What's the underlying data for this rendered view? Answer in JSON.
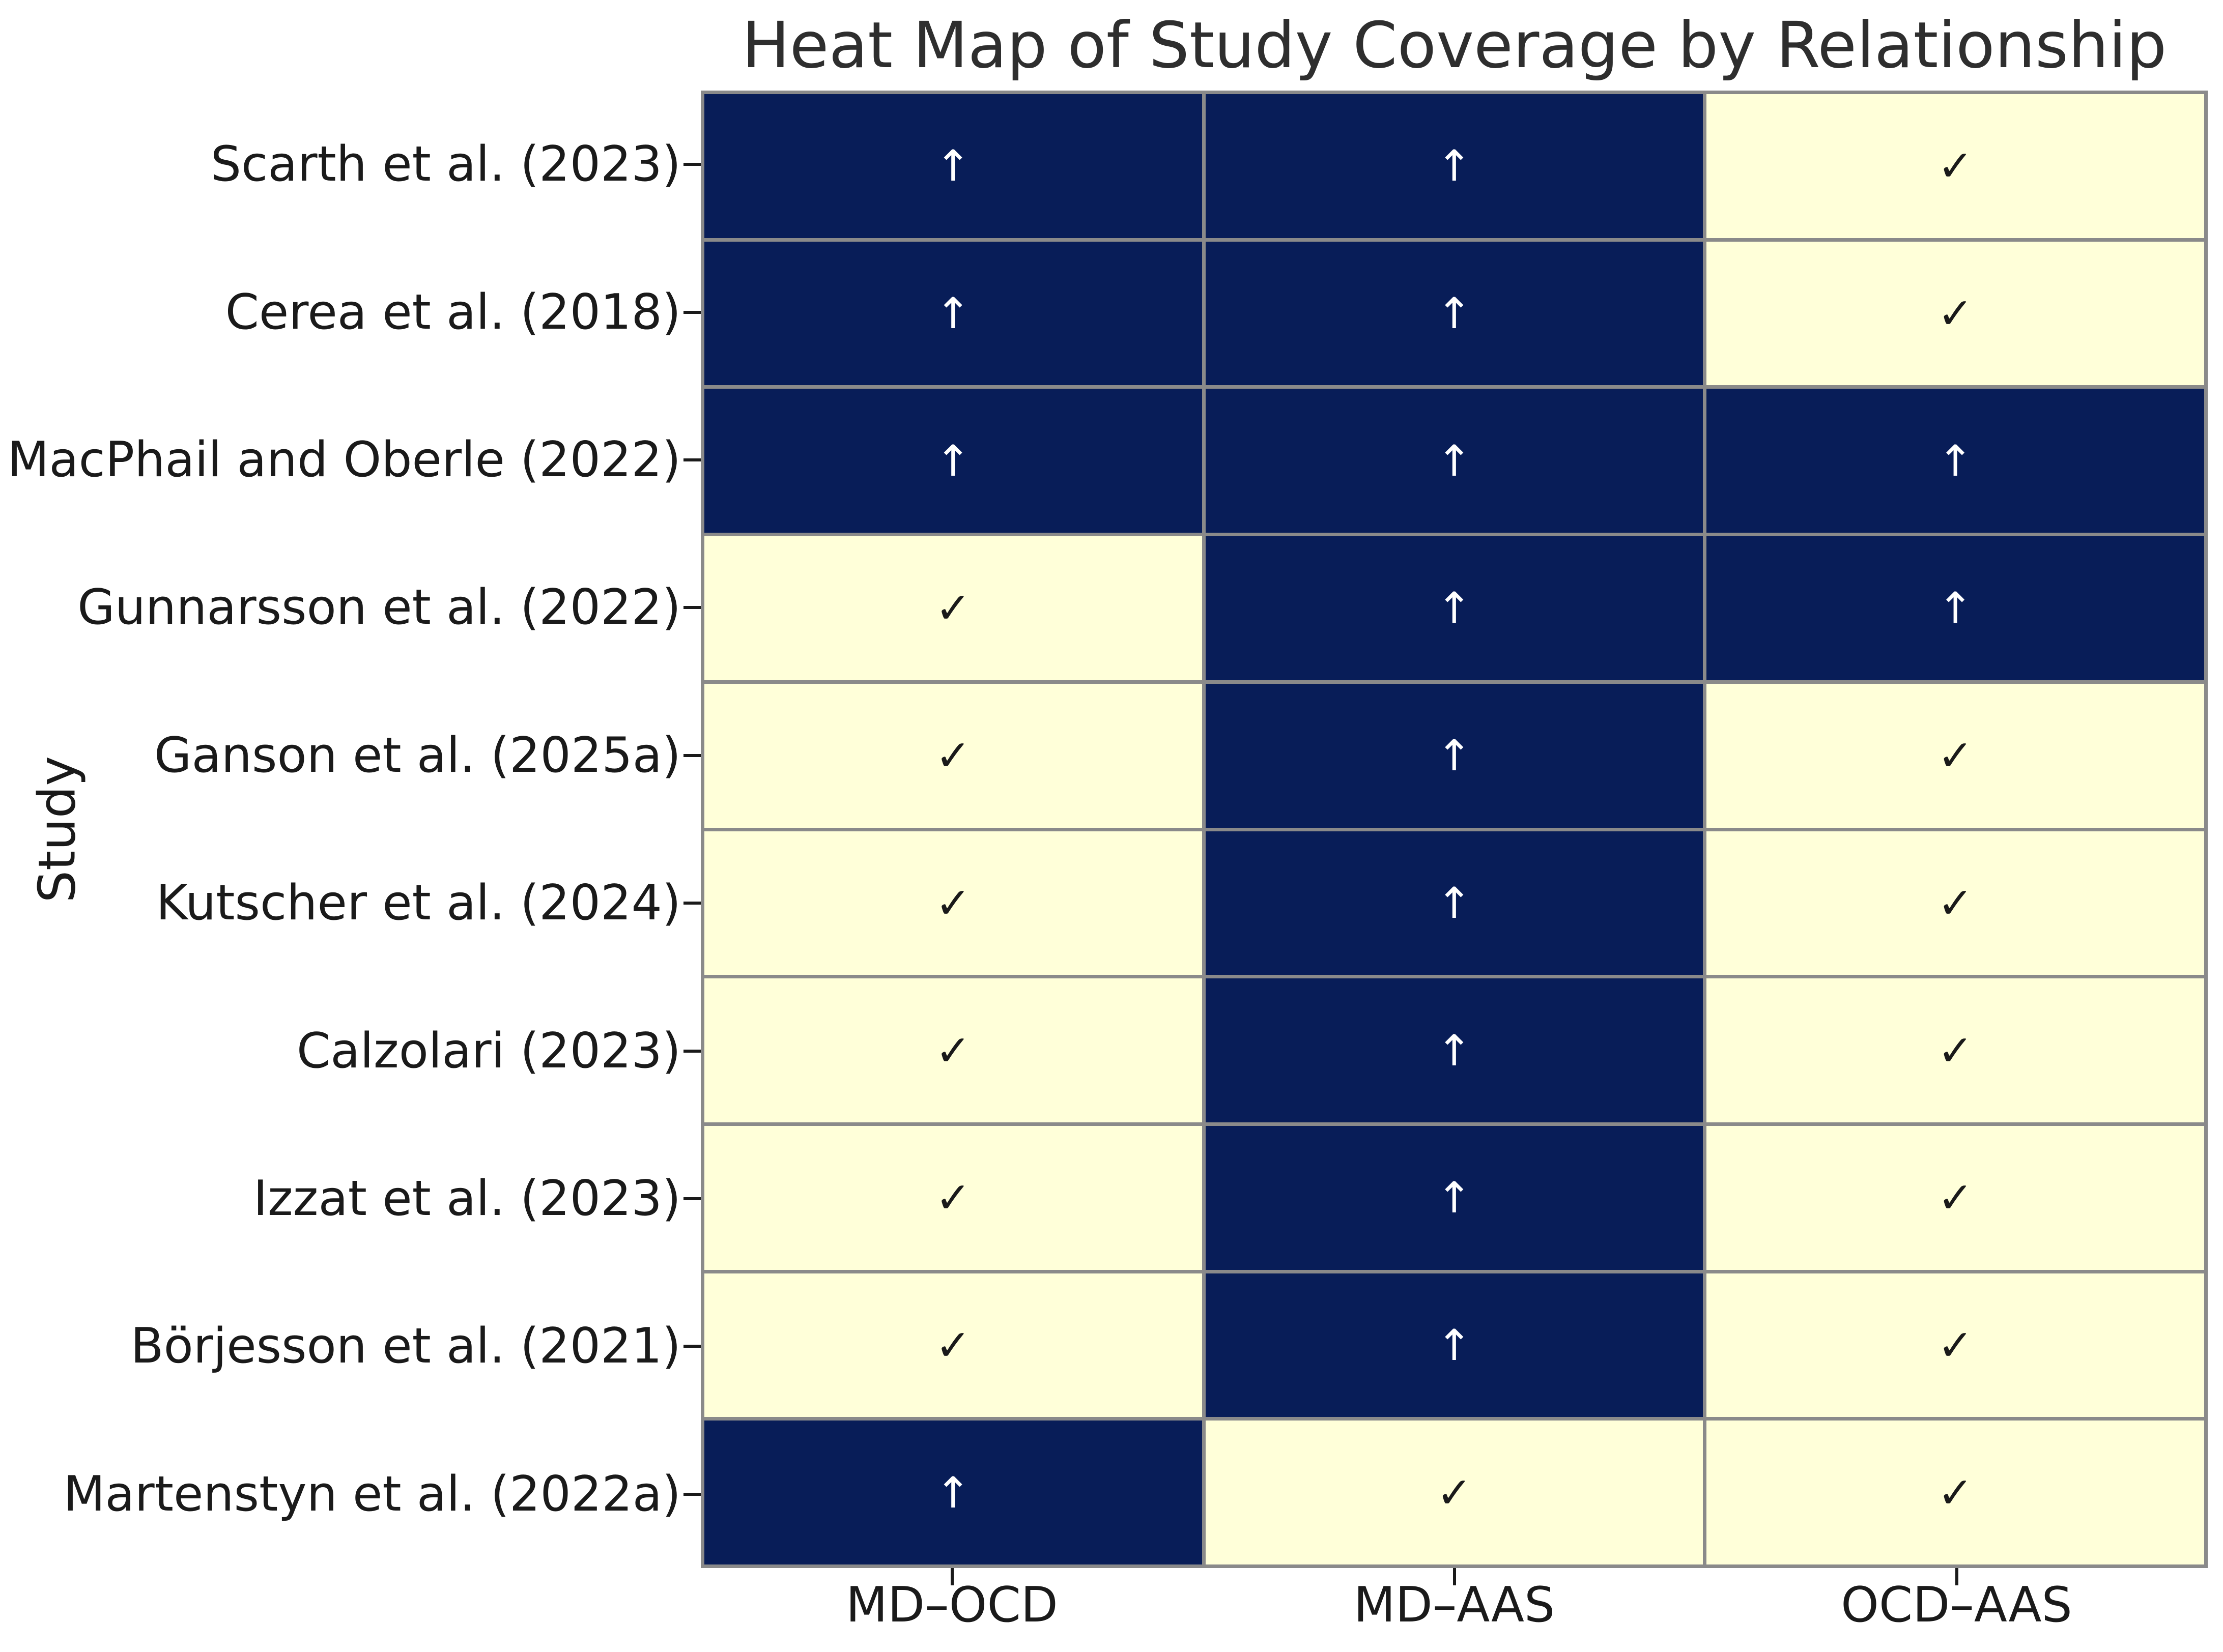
{
  "chart_data": {
    "type": "heatmap",
    "title": "Heat Map of Study Coverage by Relationship",
    "xlabel": "",
    "ylabel": "Study",
    "x_categories": [
      "MD–OCD",
      "MD–AAS",
      "OCD–AAS"
    ],
    "y_categories": [
      "Scarth et al. (2023)",
      "Cerea et al. (2018)",
      "MacPhail and Oberle (2022)",
      "Gunnarsson et al. (2022)",
      "Ganson et al. (2025a)",
      "Kutscher et al. (2024)",
      "Calzolari (2023)",
      "Izzat et al. (2023)",
      "Börjesson et al. (2021)",
      "Martenstyn et al. (2022a)"
    ],
    "cells": [
      [
        "up-arrow",
        "up-arrow",
        "check"
      ],
      [
        "up-arrow",
        "up-arrow",
        "check"
      ],
      [
        "up-arrow",
        "up-arrow",
        "up-arrow"
      ],
      [
        "check",
        "up-arrow",
        "up-arrow"
      ],
      [
        "check",
        "up-arrow",
        "check"
      ],
      [
        "check",
        "up-arrow",
        "check"
      ],
      [
        "check",
        "up-arrow",
        "check"
      ],
      [
        "check",
        "up-arrow",
        "check"
      ],
      [
        "check",
        "up-arrow",
        "check"
      ],
      [
        "up-arrow",
        "check",
        "check"
      ]
    ],
    "values": [
      [
        1,
        1,
        0
      ],
      [
        1,
        1,
        0
      ],
      [
        1,
        1,
        1
      ],
      [
        0,
        1,
        1
      ],
      [
        0,
        1,
        0
      ],
      [
        0,
        1,
        0
      ],
      [
        0,
        1,
        0
      ],
      [
        0,
        1,
        0
      ],
      [
        0,
        1,
        0
      ],
      [
        1,
        0,
        0
      ]
    ],
    "symbols": {
      "up-arrow": "↑",
      "check": "✓"
    },
    "colors": {
      "dark_cell": "#081d58",
      "light_cell": "#ffffd9",
      "grid_line": "#8a8a8a",
      "arrow_glyph": "#ffffff",
      "check_glyph": "#1a1a1a",
      "text": "#1a1a1a"
    },
    "grid": "cell-borders",
    "legend_position": "none"
  }
}
